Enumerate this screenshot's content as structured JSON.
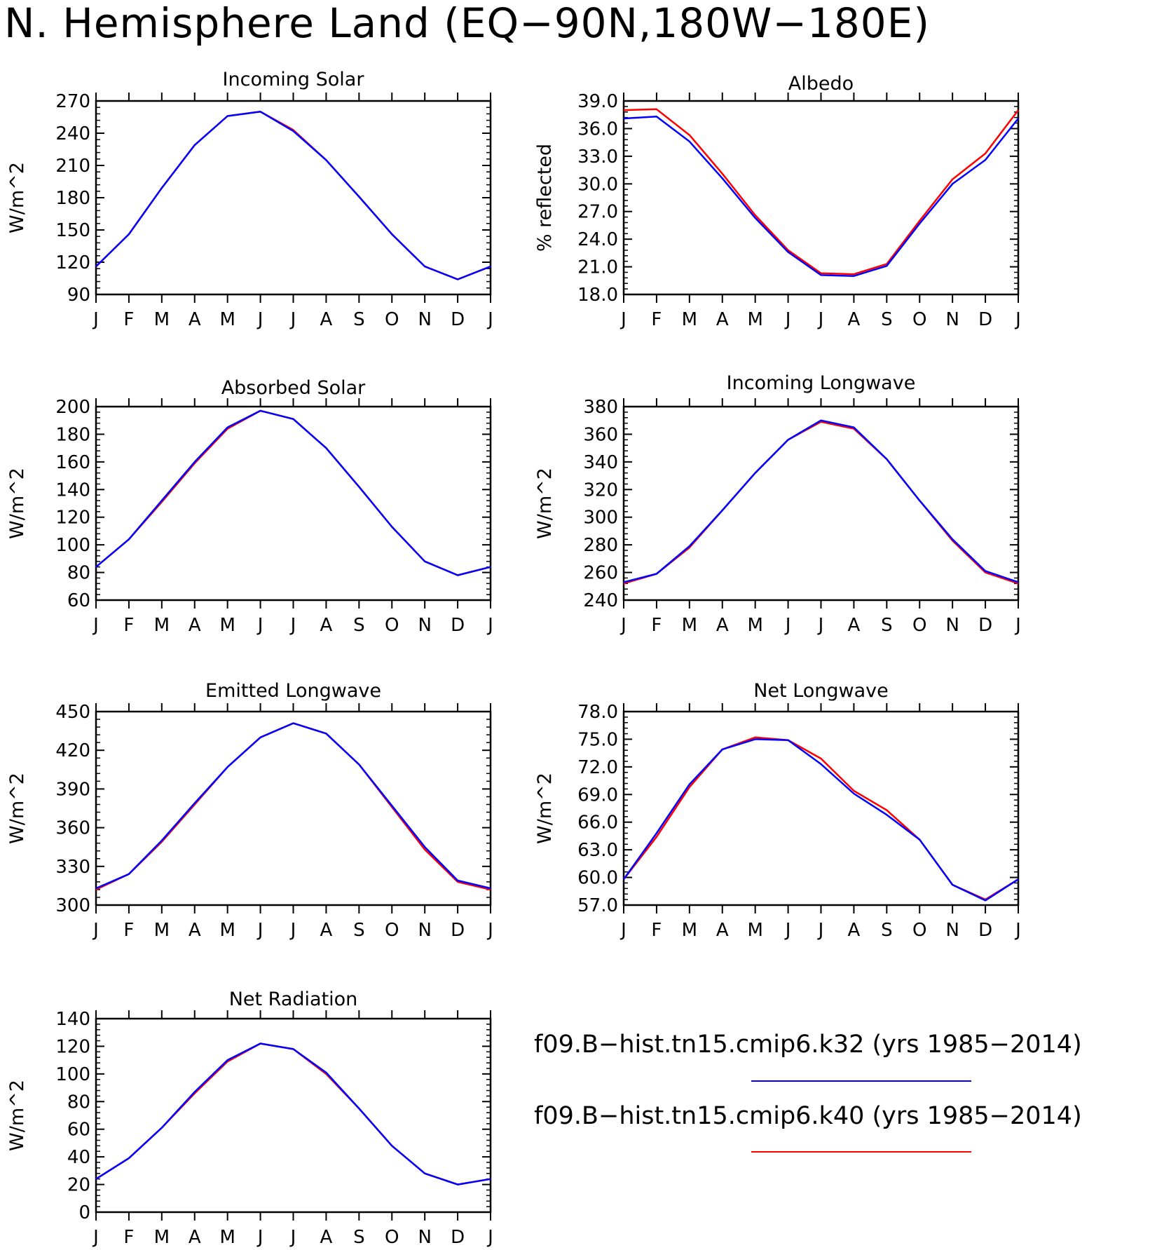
{
  "title": "N. Hemisphere Land (EQ−90N,180W−180E)",
  "colors": {
    "k32": "#0000ff",
    "k40": "#ff0000",
    "axis": "#000000"
  },
  "legend": [
    {
      "label": "f09.B−hist.tn15.cmip6.k32 (yrs 1985−2014)",
      "color": "#0000ff"
    },
    {
      "label": "f09.B−hist.tn15.cmip6.k40 (yrs 1985−2014)",
      "color": "#ff0000"
    }
  ],
  "chart_data": [
    {
      "type": "line",
      "title": "Incoming Solar",
      "ylabel": "W/m^2",
      "xlabel": "",
      "categories": [
        "J",
        "F",
        "M",
        "A",
        "M",
        "J",
        "J",
        "A",
        "S",
        "O",
        "N",
        "D",
        "J"
      ],
      "ylim": [
        90,
        270
      ],
      "yticks": [
        "90",
        "120",
        "150",
        "180",
        "210",
        "240",
        "270"
      ],
      "grid": false,
      "series": [
        {
          "name": "f09.B−hist.tn15.cmip6.k40",
          "color": "#ff0000",
          "values": [
            116,
            146,
            189,
            229,
            256,
            260,
            243,
            215,
            181,
            146,
            116,
            104,
            116
          ]
        },
        {
          "name": "f09.B−hist.tn15.cmip6.k32",
          "color": "#0000ff",
          "values": [
            116,
            146,
            189,
            229,
            256,
            260,
            242,
            215,
            181,
            146,
            116,
            104,
            116
          ]
        }
      ]
    },
    {
      "type": "line",
      "title": "Albedo",
      "ylabel": "% reflected",
      "xlabel": "",
      "categories": [
        "J",
        "F",
        "M",
        "A",
        "M",
        "J",
        "J",
        "A",
        "S",
        "O",
        "N",
        "D",
        "J"
      ],
      "ylim": [
        18,
        39
      ],
      "yticks": [
        "18.0",
        "21.0",
        "24.0",
        "27.0",
        "30.0",
        "33.0",
        "36.0",
        "39.0"
      ],
      "grid": false,
      "series": [
        {
          "name": "f09.B−hist.tn15.cmip6.k40",
          "color": "#ff0000",
          "values": [
            38.0,
            38.1,
            35.3,
            31.1,
            26.6,
            22.8,
            20.3,
            20.2,
            21.3,
            26.0,
            30.5,
            33.3,
            38.0
          ]
        },
        {
          "name": "f09.B−hist.tn15.cmip6.k32",
          "color": "#0000ff",
          "values": [
            37.1,
            37.3,
            34.6,
            30.6,
            26.3,
            22.6,
            20.1,
            20.0,
            21.1,
            25.7,
            30.0,
            32.6,
            37.1
          ]
        }
      ]
    },
    {
      "type": "line",
      "title": "Absorbed Solar",
      "ylabel": "W/m^2",
      "xlabel": "",
      "categories": [
        "J",
        "F",
        "M",
        "A",
        "M",
        "J",
        "J",
        "A",
        "S",
        "O",
        "N",
        "D",
        "J"
      ],
      "ylim": [
        60,
        200
      ],
      "yticks": [
        "60",
        "80",
        "100",
        "120",
        "140",
        "160",
        "180",
        "200"
      ],
      "grid": false,
      "series": [
        {
          "name": "f09.B−hist.tn15.cmip6.k40",
          "color": "#ff0000",
          "values": [
            84,
            104,
            131,
            159,
            184,
            197,
            191,
            170,
            142,
            113,
            88,
            78,
            84
          ]
        },
        {
          "name": "f09.B−hist.tn15.cmip6.k32",
          "color": "#0000ff",
          "values": [
            84,
            104,
            132,
            160,
            185,
            197,
            191,
            170,
            142,
            113,
            88,
            78,
            84
          ]
        }
      ]
    },
    {
      "type": "line",
      "title": "Incoming Longwave",
      "ylabel": "W/m^2",
      "xlabel": "",
      "categories": [
        "J",
        "F",
        "M",
        "A",
        "M",
        "J",
        "J",
        "A",
        "S",
        "O",
        "N",
        "D",
        "J"
      ],
      "ylim": [
        240,
        380
      ],
      "yticks": [
        "240",
        "260",
        "280",
        "300",
        "320",
        "340",
        "360",
        "380"
      ],
      "grid": false,
      "series": [
        {
          "name": "f09.B−hist.tn15.cmip6.k40",
          "color": "#ff0000",
          "values": [
            252,
            259,
            278,
            305,
            332,
            356,
            369,
            364,
            342,
            312,
            283,
            260,
            252
          ]
        },
        {
          "name": "f09.B−hist.tn15.cmip6.k32",
          "color": "#0000ff",
          "values": [
            253,
            259,
            279,
            305,
            332,
            356,
            370,
            365,
            342,
            312,
            284,
            261,
            253
          ]
        }
      ]
    },
    {
      "type": "line",
      "title": "Emitted Longwave",
      "ylabel": "W/m^2",
      "xlabel": "",
      "categories": [
        "J",
        "F",
        "M",
        "A",
        "M",
        "J",
        "J",
        "A",
        "S",
        "O",
        "N",
        "D",
        "J"
      ],
      "ylim": [
        300,
        450
      ],
      "yticks": [
        "300",
        "330",
        "360",
        "390",
        "420",
        "450"
      ],
      "grid": false,
      "series": [
        {
          "name": "f09.B−hist.tn15.cmip6.k40",
          "color": "#ff0000",
          "values": [
            312,
            324,
            349,
            378,
            407,
            430,
            441,
            433,
            409,
            376,
            343,
            318,
            312
          ]
        },
        {
          "name": "f09.B−hist.tn15.cmip6.k32",
          "color": "#0000ff",
          "values": [
            313,
            324,
            350,
            379,
            407,
            430,
            441,
            433,
            409,
            377,
            345,
            319,
            313
          ]
        }
      ]
    },
    {
      "type": "line",
      "title": "Net Longwave",
      "ylabel": "W/m^2",
      "xlabel": "",
      "categories": [
        "J",
        "F",
        "M",
        "A",
        "M",
        "J",
        "J",
        "A",
        "S",
        "O",
        "N",
        "D",
        "J"
      ],
      "ylim": [
        57,
        78
      ],
      "yticks": [
        "57.0",
        "60.0",
        "63.0",
        "66.0",
        "69.0",
        "72.0",
        "75.0",
        "78.0"
      ],
      "grid": false,
      "series": [
        {
          "name": "f09.B−hist.tn15.cmip6.k40",
          "color": "#ff0000",
          "values": [
            59.8,
            64.4,
            69.8,
            73.9,
            75.2,
            74.9,
            72.9,
            69.4,
            67.3,
            64.1,
            59.2,
            57.6,
            59.8
          ]
        },
        {
          "name": "f09.B−hist.tn15.cmip6.k32",
          "color": "#0000ff",
          "values": [
            59.8,
            64.8,
            70.1,
            73.9,
            75.0,
            74.9,
            72.3,
            69.1,
            66.8,
            64.1,
            59.2,
            57.5,
            59.8
          ]
        }
      ]
    },
    {
      "type": "line",
      "title": "Net Radiation",
      "ylabel": "W/m^2",
      "xlabel": "",
      "categories": [
        "J",
        "F",
        "M",
        "A",
        "M",
        "J",
        "J",
        "A",
        "S",
        "O",
        "N",
        "D",
        "J"
      ],
      "ylim": [
        0,
        140
      ],
      "yticks": [
        "0",
        "20",
        "40",
        "60",
        "80",
        "100",
        "120",
        "140"
      ],
      "grid": false,
      "series": [
        {
          "name": "f09.B−hist.tn15.cmip6.k40",
          "color": "#ff0000",
          "values": [
            24,
            39,
            61,
            86,
            109,
            122,
            118,
            100,
            75,
            48,
            28,
            20,
            24
          ]
        },
        {
          "name": "f09.B−hist.tn15.cmip6.k32",
          "color": "#0000ff",
          "values": [
            24,
            39,
            61,
            87,
            110,
            122,
            118,
            101,
            75,
            48,
            28,
            20,
            24
          ]
        }
      ]
    }
  ]
}
